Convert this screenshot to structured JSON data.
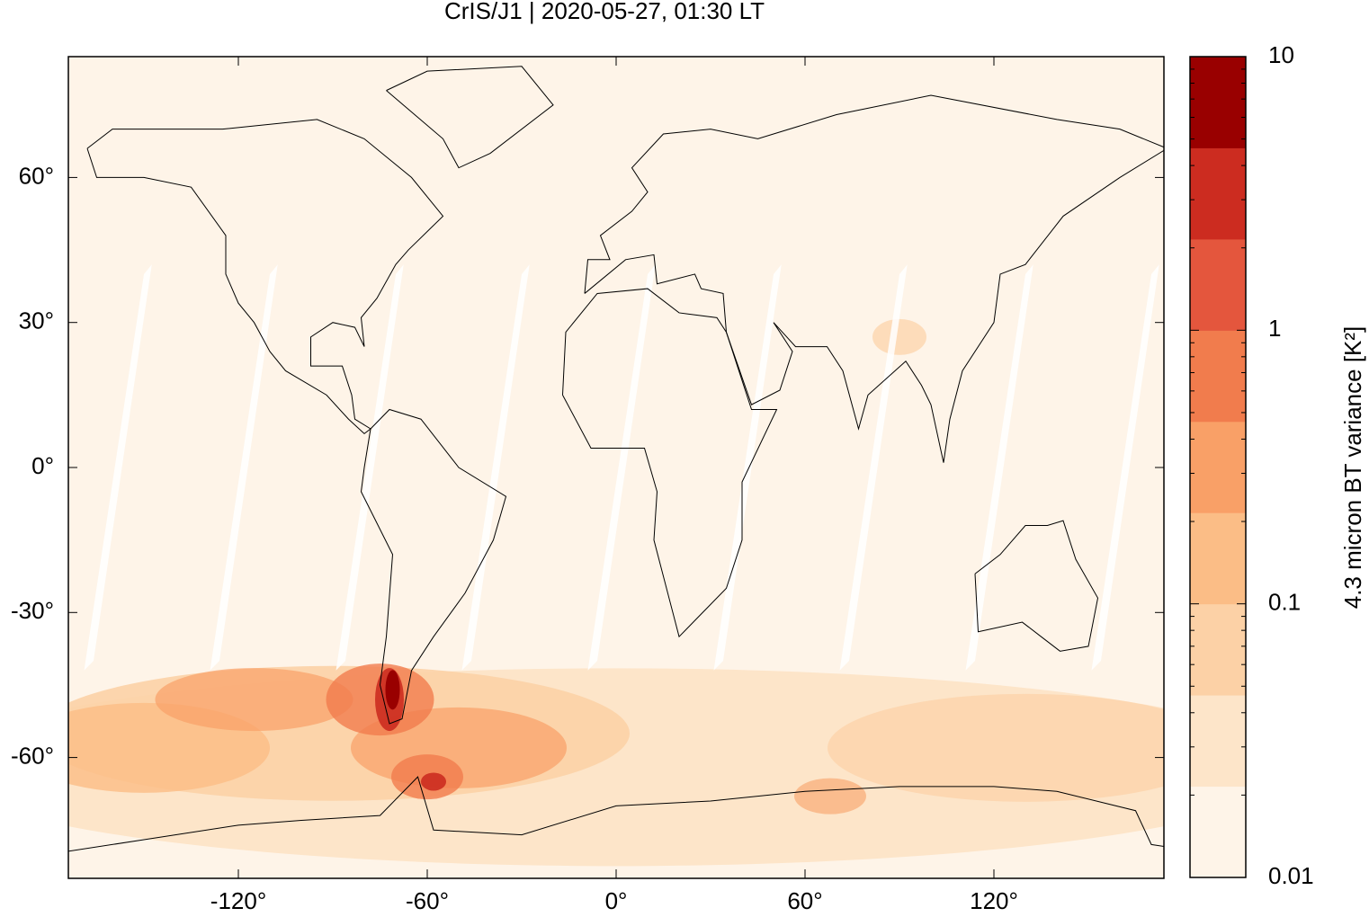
{
  "chart_data": {
    "type": "map",
    "title": "CrIS/J1 | 2020-05-27, 01:30 LT",
    "xlim": [
      -174,
      174
    ],
    "ylim": [
      -85,
      85
    ],
    "xticks": [
      {
        "value": -120,
        "label": "-120°"
      },
      {
        "value": -60,
        "label": "-60°"
      },
      {
        "value": 0,
        "label": "0°"
      },
      {
        "value": 60,
        "label": "60°"
      },
      {
        "value": 120,
        "label": "120°"
      }
    ],
    "yticks": [
      {
        "value": 60,
        "label": "60°"
      },
      {
        "value": 30,
        "label": "30°"
      },
      {
        "value": 0,
        "label": "0°"
      },
      {
        "value": -30,
        "label": "-30°"
      },
      {
        "value": -60,
        "label": "-60°"
      }
    ],
    "colorbar": {
      "label": "4.3 micron BT variance [K²]",
      "log_scale": true,
      "zlim": [
        0.01,
        10
      ],
      "zticks": [
        10,
        1,
        0.1,
        0.01
      ],
      "colors": [
        "#fef4e8",
        "#fde5c9",
        "#fcd1a6",
        "#fbbd86",
        "#f9a067",
        "#f17c4d",
        "#e4563d",
        "#cc2c20",
        "#990000"
      ]
    }
  }
}
